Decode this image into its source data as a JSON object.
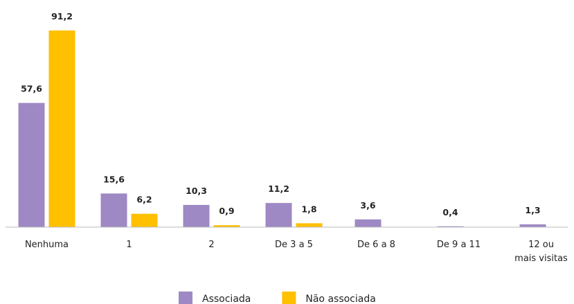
{
  "chart_data": {
    "type": "bar",
    "categories": [
      "Nenhuma",
      "1",
      "2",
      "De 3 a 5",
      "De 6 a 8",
      "De 9 a 11",
      "12 ou\nmais visitas"
    ],
    "series": [
      {
        "name": "Associada",
        "color": "#9e89c4",
        "values": [
          57.6,
          15.6,
          10.3,
          11.2,
          3.6,
          0.4,
          1.3
        ],
        "value_labels": [
          "57,6",
          "15,6",
          "10,3",
          "11,2",
          "3,6",
          "0,4",
          "1,3"
        ]
      },
      {
        "name": "Não associada",
        "color": "#ffc000",
        "values": [
          91.2,
          6.2,
          0.9,
          1.8,
          null,
          null,
          null
        ],
        "value_labels": [
          "91,2",
          "6,2",
          "0,9",
          "1,8",
          null,
          null,
          null
        ]
      }
    ],
    "legend": "bottom"
  }
}
